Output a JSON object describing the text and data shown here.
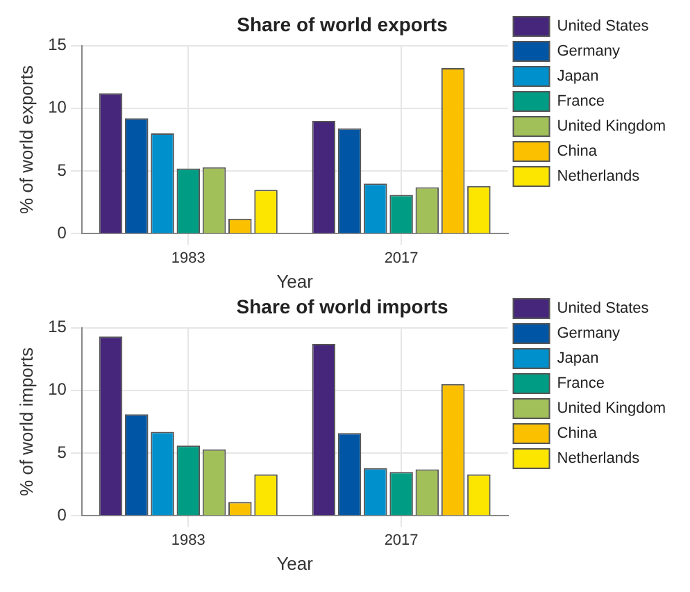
{
  "chart_data": [
    {
      "type": "bar",
      "title": "Share of world exports",
      "xlabel": "Year",
      "ylabel": "% of world exports",
      "categories": [
        "1983",
        "2017"
      ],
      "series": [
        {
          "name": "United States",
          "color": "#46267a",
          "values": [
            11.2,
            9.0
          ]
        },
        {
          "name": "Germany",
          "color": "#0055a4",
          "values": [
            9.2,
            8.4
          ]
        },
        {
          "name": "Japan",
          "color": "#0090cc",
          "values": [
            8.0,
            4.0
          ]
        },
        {
          "name": "France",
          "color": "#009d84",
          "values": [
            5.2,
            3.1
          ]
        },
        {
          "name": "United Kingdom",
          "color": "#a2c05a",
          "values": [
            5.3,
            3.7
          ]
        },
        {
          "name": "China",
          "color": "#fbc100",
          "values": [
            1.2,
            13.2
          ]
        },
        {
          "name": "Netherlands",
          "color": "#fce600",
          "values": [
            3.5,
            3.8
          ]
        }
      ],
      "ylim": [
        0,
        15
      ],
      "yticks": [
        0,
        5,
        10,
        15
      ],
      "grid": true,
      "legend": "top right"
    },
    {
      "type": "bar",
      "title": "Share of world imports",
      "xlabel": "Year",
      "ylabel": "% of world imports",
      "categories": [
        "1983",
        "2017"
      ],
      "series": [
        {
          "name": "United States",
          "color": "#46267a",
          "values": [
            14.3,
            13.7
          ]
        },
        {
          "name": "Germany",
          "color": "#0055a4",
          "values": [
            8.1,
            6.6
          ]
        },
        {
          "name": "Japan",
          "color": "#0090cc",
          "values": [
            6.7,
            3.8
          ]
        },
        {
          "name": "France",
          "color": "#009d84",
          "values": [
            5.6,
            3.5
          ]
        },
        {
          "name": "United Kingdom",
          "color": "#a2c05a",
          "values": [
            5.3,
            3.7
          ]
        },
        {
          "name": "China",
          "color": "#fbc100",
          "values": [
            1.1,
            10.5
          ]
        },
        {
          "name": "Netherlands",
          "color": "#fce600",
          "values": [
            3.3,
            3.3
          ]
        }
      ],
      "ylim": [
        0,
        15
      ],
      "yticks": [
        0,
        5,
        10,
        15
      ],
      "grid": true,
      "legend": "top right"
    }
  ]
}
